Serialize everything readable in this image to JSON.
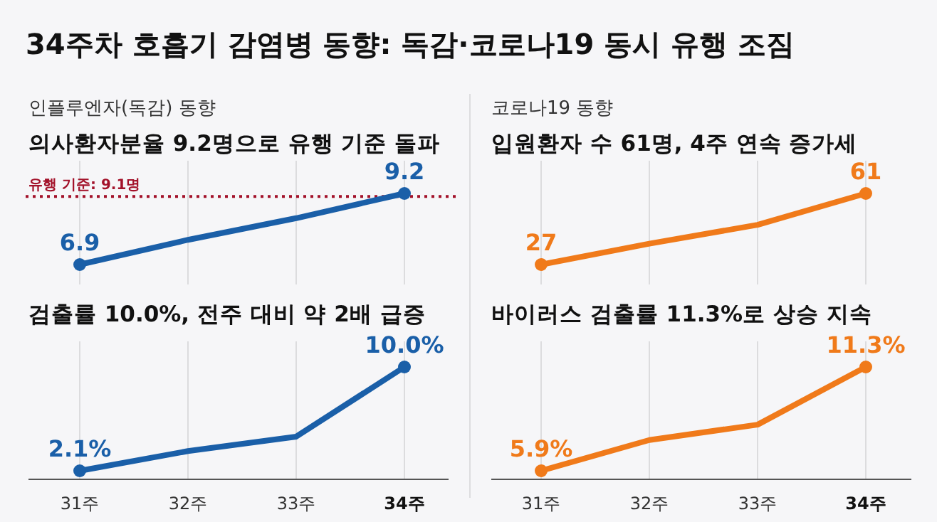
{
  "chart_data": [
    {
      "type": "other",
      "title": "34주차 호흡기 감염병 동향: 독감·코로나19 동시 유행 조짐"
    },
    {
      "type": "line",
      "subtitle": "인플루엔자(독감) 동향",
      "title": "의사환자분율 9.2명으로 유행 기준 돌파",
      "categories": [
        null,
        null,
        null,
        null
      ],
      "values": [
        6.9,
        7.7,
        8.4,
        9.2
      ],
      "value_labels": [
        "6.9",
        null,
        null,
        "9.2"
      ],
      "color": "#1a5fa8",
      "marker": "circle",
      "grid": "x",
      "tick_labels": false,
      "ref_lines": [
        {
          "axis": "y",
          "value": 9.1,
          "label": "유행 기준: 9.1명",
          "color": "#a3122a",
          "line_style": "dotted"
        }
      ]
    },
    {
      "type": "line",
      "subtitle": "코로나19 동향",
      "title": "입원환자 수 61명, 4주 연속 증가세",
      "categories": [
        null,
        null,
        null,
        null
      ],
      "values": [
        27,
        37,
        46,
        61
      ],
      "value_labels": [
        "27",
        null,
        null,
        "61"
      ],
      "color": "#f07a1a",
      "marker": "circle",
      "grid": "x",
      "tick_labels": false
    },
    {
      "type": "line",
      "title": "검출률 10.0%, 전주 대비 약 2배 급증",
      "categories": [
        "31주",
        "32주",
        "33주",
        "34주"
      ],
      "values": [
        2.1,
        3.6,
        4.7,
        10.0
      ],
      "value_labels": [
        "2.1%",
        null,
        null,
        "10.0%"
      ],
      "color": "#1a5fa8",
      "marker": "circle",
      "grid": "x",
      "tick_labels": "x"
    },
    {
      "type": "line",
      "title": "바이러스 검출률 11.3%로 상승 지속",
      "categories": [
        "31주",
        "32주",
        "33주",
        "34주"
      ],
      "values": [
        5.9,
        7.5,
        8.3,
        11.3
      ],
      "value_labels": [
        "5.9%",
        null,
        null,
        "11.3%"
      ],
      "color": "#f07a1a",
      "marker": "circle",
      "grid": "x",
      "tick_labels": "x"
    }
  ]
}
